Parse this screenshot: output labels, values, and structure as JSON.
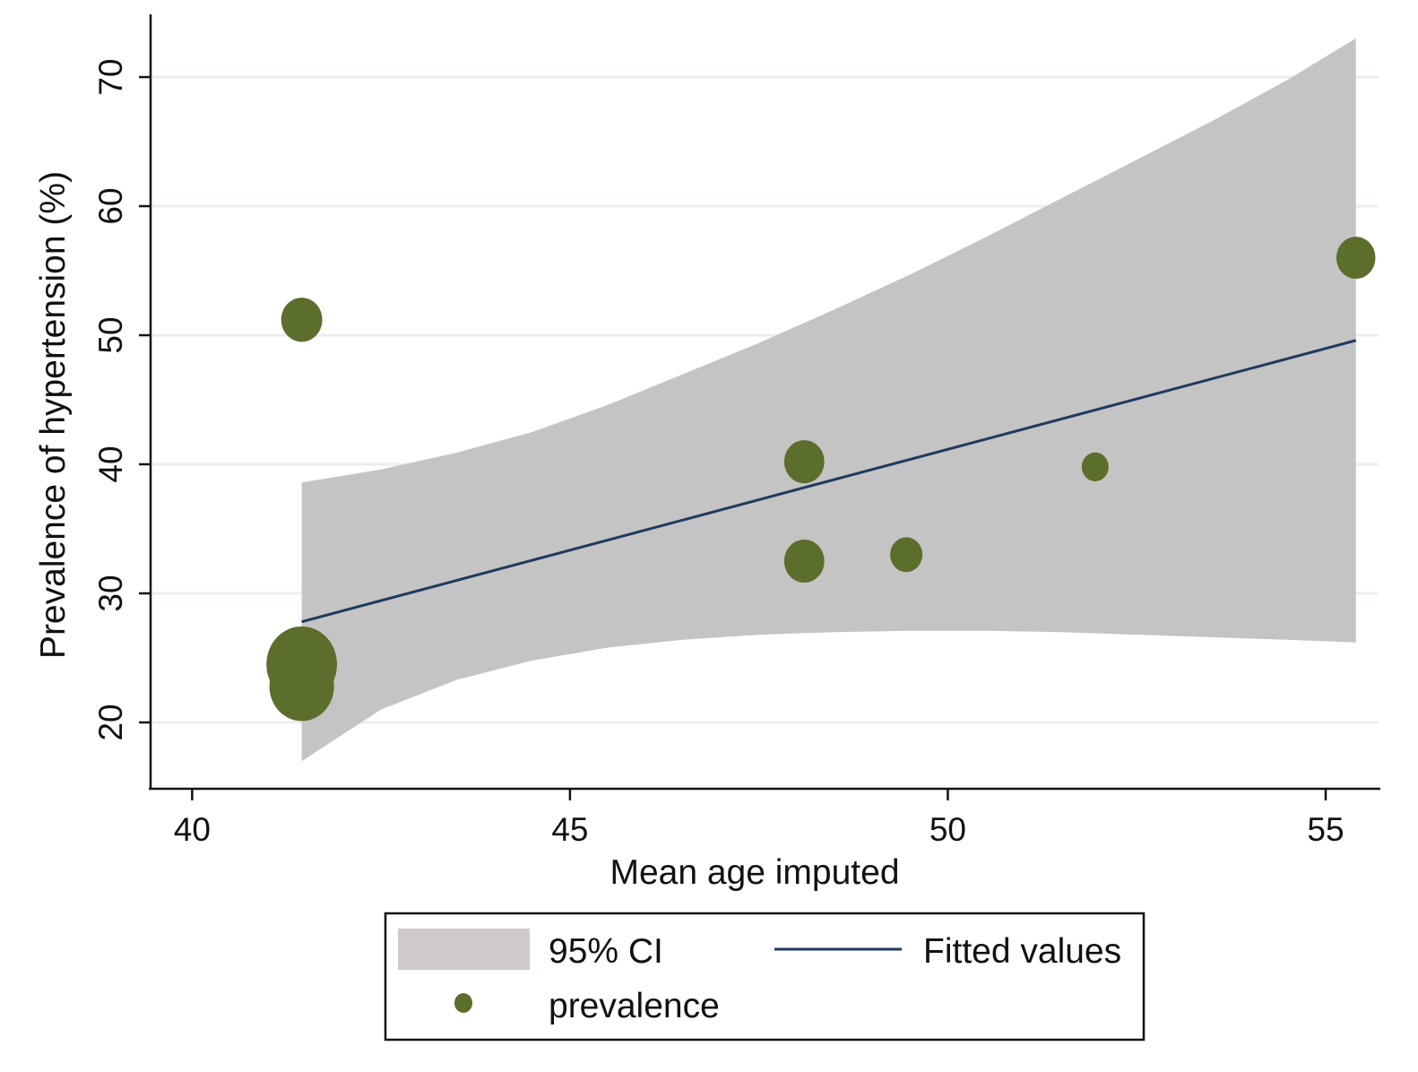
{
  "chart_data": {
    "type": "scatter",
    "xlabel": "Mean age imputed",
    "ylabel": "Prevalence of hypertension (%)",
    "xlim": [
      39.45,
      55.7
    ],
    "ylim": [
      15,
      75
    ],
    "xticks": [
      40,
      45,
      50,
      55
    ],
    "yticks": [
      20,
      30,
      40,
      50,
      60,
      70
    ],
    "grid": "horizontal",
    "legend_position": "bottom",
    "legend": {
      "ci_label": "95% CI",
      "fit_label": "Fitted values",
      "points_label": "prevalence"
    },
    "colors": {
      "points": "#5b6e2b",
      "fit_line": "#1f3a5f",
      "ci_band": "#c4c4c4",
      "legend_ci": "#cfcaca",
      "grid": "#e9eeee"
    },
    "points": [
      {
        "x": 41.45,
        "y": 51.2,
        "weight": 2.1
      },
      {
        "x": 41.45,
        "y": 24.5,
        "weight": 6.2
      },
      {
        "x": 41.45,
        "y": 22.8,
        "weight": 5.2
      },
      {
        "x": 48.1,
        "y": 40.2,
        "weight": 2.0
      },
      {
        "x": 48.1,
        "y": 32.5,
        "weight": 2.0
      },
      {
        "x": 49.45,
        "y": 33.0,
        "weight": 1.3
      },
      {
        "x": 51.95,
        "y": 39.8,
        "weight": 0.9
      },
      {
        "x": 55.4,
        "y": 56.0,
        "weight": 1.9
      }
    ],
    "fitted": {
      "x": [
        41.45,
        55.4
      ],
      "y": [
        27.8,
        49.6
      ]
    },
    "ci": {
      "x": [
        41.45,
        42.5,
        43.5,
        44.5,
        45.5,
        46.5,
        47.5,
        48.5,
        49.5,
        50.5,
        51.5,
        52.5,
        53.5,
        54.5,
        55.4
      ],
      "upper": [
        38.6,
        39.6,
        40.9,
        42.5,
        44.6,
        47.0,
        49.4,
        52.0,
        54.7,
        57.6,
        60.6,
        63.6,
        66.6,
        69.8,
        73.0
      ],
      "lower": [
        17.0,
        21.0,
        23.3,
        24.8,
        25.8,
        26.4,
        26.8,
        27.0,
        27.1,
        27.1,
        27.0,
        26.8,
        26.6,
        26.4,
        26.2
      ]
    }
  }
}
